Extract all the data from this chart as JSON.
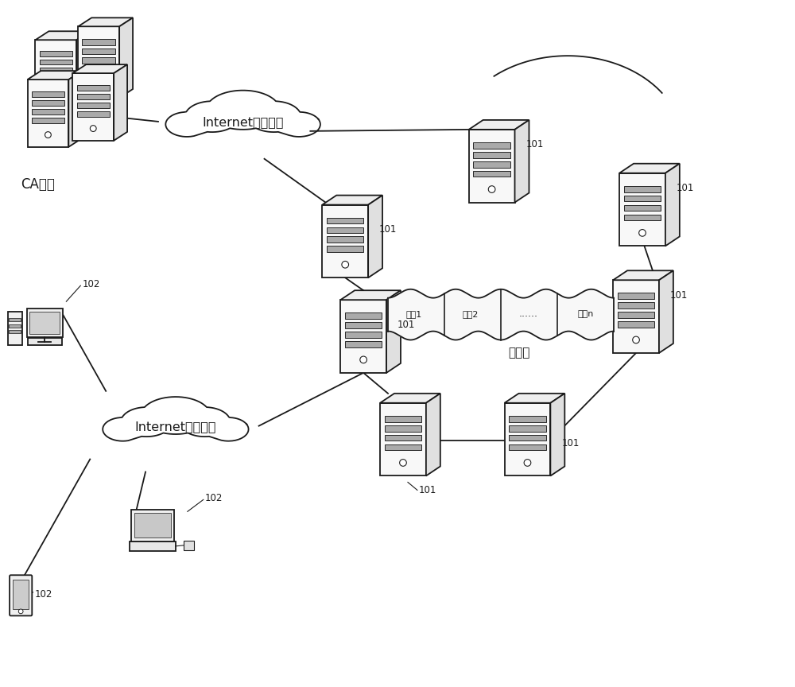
{
  "bg_color": "#ffffff",
  "line_color": "#1a1a1a",
  "label_101": "101",
  "label_102": "102",
  "label_ca": "CA中心",
  "label_internet1": "Internet或局域网",
  "label_internet2": "Internet或局域网",
  "label_blockchain": "区块链",
  "label_block1": "区块1",
  "label_block2": "区块2",
  "label_block_dots": "......",
  "label_blockn": "区块n",
  "figsize": [
    10.0,
    8.64
  ],
  "dpi": 100
}
